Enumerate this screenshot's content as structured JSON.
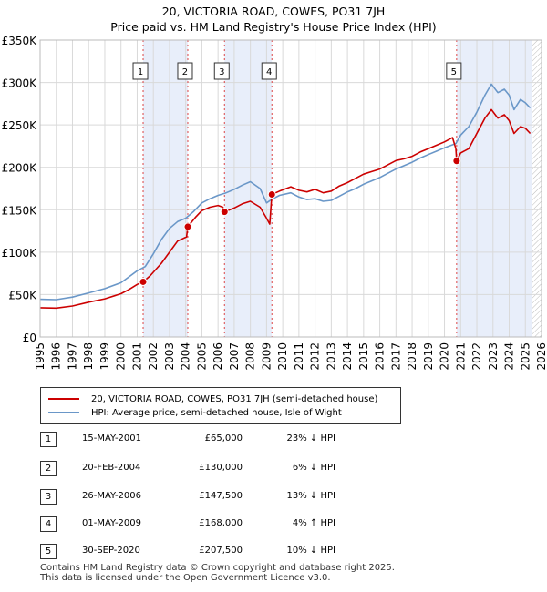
{
  "chart_data": {
    "type": "line",
    "title": "20, VICTORIA ROAD, COWES, PO31 7JH",
    "subtitle": "Price paid vs. HM Land Registry's House Price Index (HPI)",
    "xlim": [
      1995,
      2026
    ],
    "ylim": [
      0,
      350000
    ],
    "x_ticks": [
      "1995",
      "1996",
      "1997",
      "1998",
      "1999",
      "2000",
      "2001",
      "2002",
      "2003",
      "2004",
      "2005",
      "2006",
      "2007",
      "2008",
      "2009",
      "2010",
      "2011",
      "2012",
      "2013",
      "2014",
      "2015",
      "2016",
      "2017",
      "2018",
      "2019",
      "2020",
      "2021",
      "2022",
      "2023",
      "2024",
      "2025",
      "2026"
    ],
    "y_ticks": [
      {
        "value": 0,
        "label": "£0"
      },
      {
        "value": 50000,
        "label": "£50K"
      },
      {
        "value": 100000,
        "label": "£100K"
      },
      {
        "value": 150000,
        "label": "£150K"
      },
      {
        "value": 200000,
        "label": "£200K"
      },
      {
        "value": 250000,
        "label": "£250K"
      },
      {
        "value": 300000,
        "label": "£300K"
      },
      {
        "value": 350000,
        "label": "£350K"
      }
    ],
    "grid": true,
    "series": [
      {
        "name": "20, VICTORIA ROAD, COWES, PO31 7JH (semi-detached house)",
        "color": "#cc0000",
        "points": [
          [
            1995.0,
            34500
          ],
          [
            1996.0,
            34000
          ],
          [
            1997.0,
            36500
          ],
          [
            1998.0,
            41000
          ],
          [
            1999.0,
            45000
          ],
          [
            2000.0,
            51000
          ],
          [
            2000.5,
            56000
          ],
          [
            2001.0,
            62000
          ],
          [
            2001.37,
            65000
          ],
          [
            2001.8,
            72000
          ],
          [
            2002.5,
            87000
          ],
          [
            2003.0,
            100000
          ],
          [
            2003.5,
            113000
          ],
          [
            2004.05,
            118000
          ],
          [
            2004.13,
            130000
          ],
          [
            2004.6,
            141000
          ],
          [
            2005.0,
            149000
          ],
          [
            2005.5,
            153000
          ],
          [
            2006.0,
            155000
          ],
          [
            2006.3,
            153000
          ],
          [
            2006.4,
            147500
          ],
          [
            2007.0,
            152000
          ],
          [
            2007.5,
            157000
          ],
          [
            2008.0,
            160000
          ],
          [
            2008.6,
            153000
          ],
          [
            2009.0,
            140000
          ],
          [
            2009.2,
            133000
          ],
          [
            2009.33,
            168000
          ],
          [
            2009.8,
            172000
          ],
          [
            2010.5,
            177000
          ],
          [
            2011.0,
            173000
          ],
          [
            2011.5,
            171000
          ],
          [
            2012.0,
            174000
          ],
          [
            2012.5,
            170000
          ],
          [
            2013.0,
            172000
          ],
          [
            2013.5,
            178000
          ],
          [
            2014.0,
            182000
          ],
          [
            2014.5,
            187000
          ],
          [
            2015.0,
            192000
          ],
          [
            2015.5,
            195000
          ],
          [
            2016.0,
            198000
          ],
          [
            2016.5,
            203000
          ],
          [
            2017.0,
            208000
          ],
          [
            2017.5,
            210000
          ],
          [
            2018.0,
            213000
          ],
          [
            2018.5,
            218000
          ],
          [
            2019.0,
            222000
          ],
          [
            2019.5,
            226000
          ],
          [
            2020.0,
            230000
          ],
          [
            2020.5,
            235000
          ],
          [
            2020.7,
            222000
          ],
          [
            2020.75,
            207500
          ],
          [
            2021.0,
            217000
          ],
          [
            2021.5,
            222000
          ],
          [
            2022.0,
            240000
          ],
          [
            2022.5,
            258000
          ],
          [
            2022.9,
            268000
          ],
          [
            2023.3,
            258000
          ],
          [
            2023.7,
            262000
          ],
          [
            2024.0,
            255000
          ],
          [
            2024.3,
            240000
          ],
          [
            2024.7,
            248000
          ],
          [
            2025.0,
            246000
          ],
          [
            2025.3,
            240000
          ]
        ]
      },
      {
        "name": "HPI: Average price, semi-detached house, Isle of Wight",
        "color": "#6a97c8",
        "points": [
          [
            1995.0,
            44500
          ],
          [
            1996.0,
            44000
          ],
          [
            1997.0,
            47000
          ],
          [
            1998.0,
            52000
          ],
          [
            1999.0,
            57000
          ],
          [
            2000.0,
            64000
          ],
          [
            2000.5,
            71000
          ],
          [
            2001.0,
            78000
          ],
          [
            2001.5,
            83000
          ],
          [
            2002.0,
            98000
          ],
          [
            2002.5,
            115000
          ],
          [
            2003.0,
            128000
          ],
          [
            2003.5,
            136000
          ],
          [
            2004.0,
            140000
          ],
          [
            2004.5,
            148000
          ],
          [
            2005.0,
            158000
          ],
          [
            2005.5,
            163000
          ],
          [
            2006.0,
            167000
          ],
          [
            2006.5,
            170000
          ],
          [
            2007.0,
            174000
          ],
          [
            2007.5,
            179000
          ],
          [
            2008.0,
            183000
          ],
          [
            2008.6,
            175000
          ],
          [
            2009.0,
            158000
          ],
          [
            2009.3,
            162000
          ],
          [
            2009.8,
            167000
          ],
          [
            2010.5,
            170000
          ],
          [
            2011.0,
            165000
          ],
          [
            2011.5,
            162000
          ],
          [
            2012.0,
            163000
          ],
          [
            2012.5,
            160000
          ],
          [
            2013.0,
            161000
          ],
          [
            2013.5,
            166000
          ],
          [
            2014.0,
            171000
          ],
          [
            2014.5,
            175000
          ],
          [
            2015.0,
            180000
          ],
          [
            2015.5,
            184000
          ],
          [
            2016.0,
            188000
          ],
          [
            2016.5,
            193000
          ],
          [
            2017.0,
            198000
          ],
          [
            2017.5,
            202000
          ],
          [
            2018.0,
            206000
          ],
          [
            2018.5,
            211000
          ],
          [
            2019.0,
            215000
          ],
          [
            2019.5,
            219000
          ],
          [
            2020.0,
            223000
          ],
          [
            2020.7,
            228000
          ],
          [
            2021.0,
            238000
          ],
          [
            2021.5,
            248000
          ],
          [
            2022.0,
            265000
          ],
          [
            2022.5,
            285000
          ],
          [
            2022.9,
            298000
          ],
          [
            2023.3,
            288000
          ],
          [
            2023.7,
            292000
          ],
          [
            2024.0,
            285000
          ],
          [
            2024.3,
            268000
          ],
          [
            2024.7,
            280000
          ],
          [
            2025.0,
            276000
          ],
          [
            2025.3,
            270000
          ]
        ]
      }
    ],
    "sales": [
      {
        "num": "1",
        "x": 2001.37,
        "price": 65000,
        "date": "15-MAY-2001",
        "price_label": "£65,000",
        "delta": "23% ↓ HPI"
      },
      {
        "num": "2",
        "x": 2004.13,
        "price": 130000,
        "date": "20-FEB-2004",
        "price_label": "£130,000",
        "delta": "6% ↓ HPI"
      },
      {
        "num": "3",
        "x": 2006.4,
        "price": 147500,
        "date": "26-MAY-2006",
        "price_label": "£147,500",
        "delta": "13% ↓ HPI"
      },
      {
        "num": "4",
        "x": 2009.33,
        "price": 168000,
        "date": "01-MAY-2009",
        "price_label": "£168,000",
        "delta": "4% ↑ HPI"
      },
      {
        "num": "5",
        "x": 2020.75,
        "price": 207500,
        "date": "30-SEP-2020",
        "price_label": "£207,500",
        "delta": "10% ↓ HPI"
      }
    ],
    "shaded_periods": [
      [
        2001.37,
        2004.13
      ],
      [
        2006.4,
        2009.33
      ],
      [
        2020.75,
        2025.4
      ]
    ],
    "hatched_after": 2025.4
  },
  "legend": {
    "property_label": "20, VICTORIA ROAD, COWES, PO31 7JH (semi-detached house)",
    "hpi_label": "HPI: Average price, semi-detached house, Isle of Wight"
  },
  "footer": {
    "line1": "Contains HM Land Registry data © Crown copyright and database right 2025.",
    "line2": "This data is licensed under the Open Government Licence v3.0."
  }
}
